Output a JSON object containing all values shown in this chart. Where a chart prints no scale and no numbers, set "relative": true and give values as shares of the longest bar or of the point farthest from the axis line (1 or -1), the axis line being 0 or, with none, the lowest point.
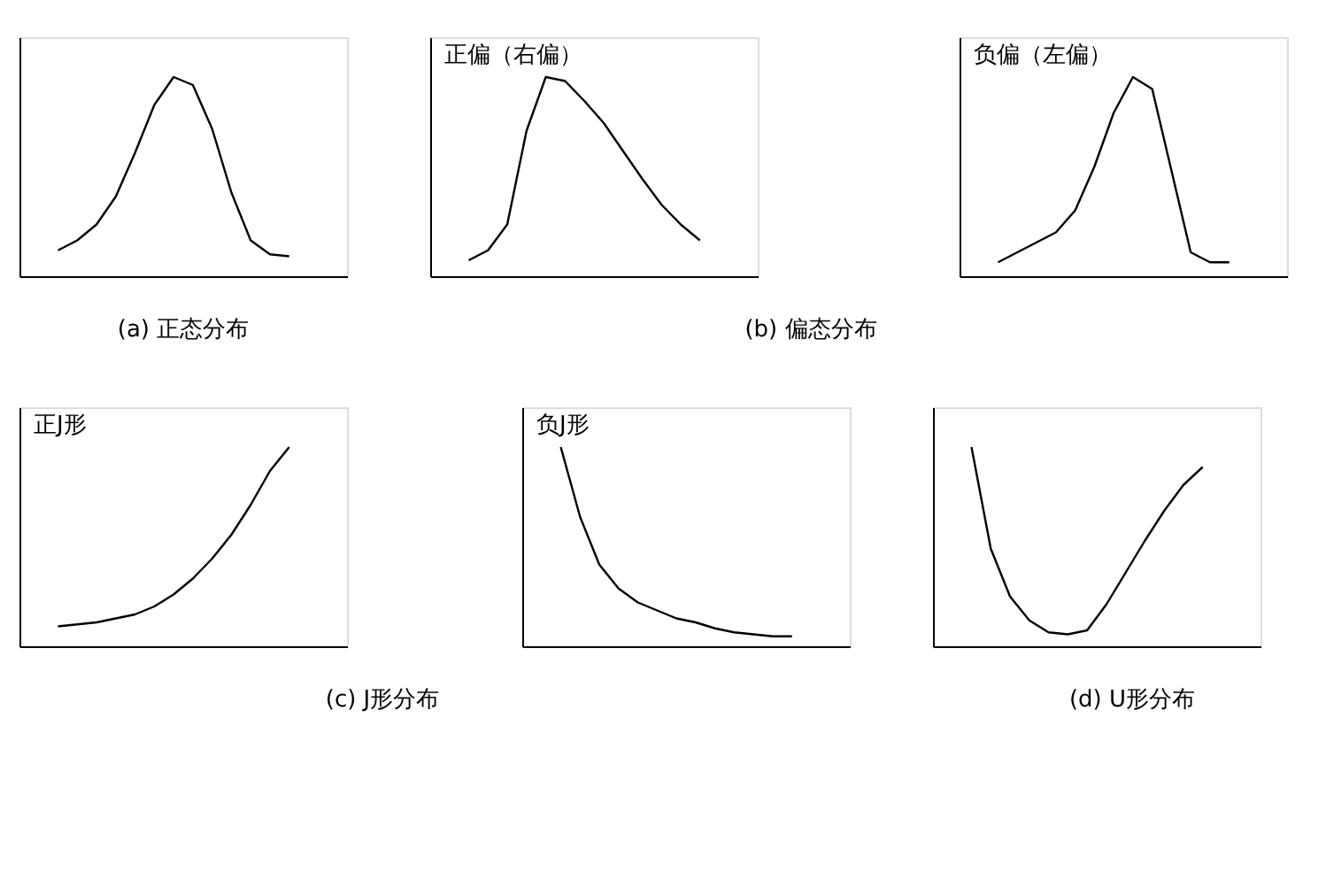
{
  "chart_data": [
    {
      "type": "line",
      "relative": true,
      "categories": [
        null,
        null,
        null,
        null,
        null,
        null,
        null,
        null,
        null,
        null,
        null,
        null,
        null
      ],
      "color": "#000000",
      "values": [
        0.13,
        0.18,
        0.26,
        0.4,
        0.62,
        0.86,
        1,
        0.96,
        0.74,
        0.42,
        0.18,
        0.11,
        0.1
      ],
      "annotations": [
        "(a) 正态分布"
      ]
    },
    {
      "type": "line",
      "relative": true,
      "categories": [
        null,
        null,
        null,
        null,
        null,
        null,
        null,
        null,
        null,
        null,
        null,
        null,
        null
      ],
      "color": "#000000",
      "title": "正偏（右偏）",
      "values": [
        0.08,
        0.13,
        0.26,
        0.73,
        1,
        0.98,
        0.88,
        0.77,
        0.63,
        0.49,
        0.36,
        0.26,
        0.18
      ],
      "annotations": [
        "(b) 偏态分布"
      ]
    },
    {
      "type": "line",
      "relative": true,
      "categories": [
        null,
        null,
        null,
        null,
        null,
        null,
        null,
        null,
        null,
        null,
        null,
        null,
        null
      ],
      "color": "#000000",
      "title": "负偏（左偏）",
      "values": [
        0.07,
        0.12,
        0.17,
        0.22,
        0.33,
        0.55,
        0.82,
        1,
        0.94,
        0.53,
        0.12,
        0.07,
        0.07
      ]
    },
    {
      "type": "line",
      "relative": true,
      "categories": [
        null,
        null,
        null,
        null,
        null,
        null,
        null,
        null,
        null,
        null,
        null,
        null,
        null
      ],
      "color": "#000000",
      "title": "正J形",
      "values": [
        0.1,
        0.11,
        0.12,
        0.14,
        0.16,
        0.2,
        0.26,
        0.34,
        0.44,
        0.56,
        0.71,
        0.88,
        1
      ],
      "annotations": [
        "(c) J形分布"
      ]
    },
    {
      "type": "line",
      "relative": true,
      "categories": [
        null,
        null,
        null,
        null,
        null,
        null,
        null,
        null,
        null,
        null,
        null,
        null,
        null
      ],
      "color": "#000000",
      "title": "负J形",
      "values": [
        1,
        0.65,
        0.41,
        0.29,
        0.22,
        0.18,
        0.14,
        0.12,
        0.09,
        0.07,
        0.06,
        0.05,
        0.05
      ]
    },
    {
      "type": "line",
      "relative": true,
      "categories": [
        null,
        null,
        null,
        null,
        null,
        null,
        null,
        null,
        null,
        null,
        null,
        null,
        null
      ],
      "color": "#000000",
      "values": [
        1,
        0.49,
        0.25,
        0.13,
        0.07,
        0.06,
        0.08,
        0.21,
        0.37,
        0.53,
        0.68,
        0.81,
        0.9
      ],
      "annotations": [
        "(d) U形分布"
      ]
    }
  ]
}
